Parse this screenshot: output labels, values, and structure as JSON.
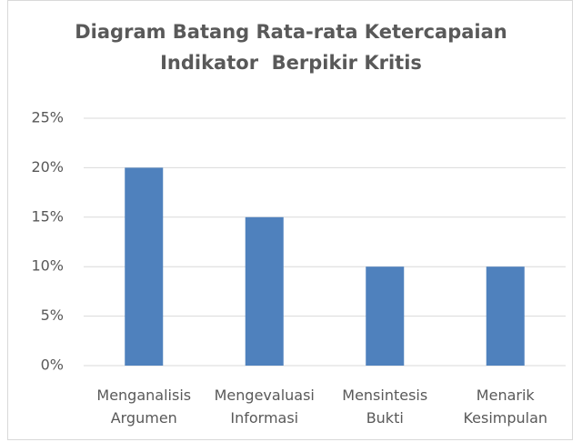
{
  "chart_data": {
    "type": "bar",
    "title": "Diagram Batang Rata-rata Ketercapaian\nIndikator  Berpikir Kritis",
    "categories": [
      "Menganalisis\nArgumen",
      "Mengevaluasi\nInformasi",
      "Mensintesis\nBukti",
      "Menarik\nKesimpulan"
    ],
    "values": [
      20,
      15,
      10,
      10
    ],
    "color": "#4f81bd",
    "ylim": [
      0,
      25
    ],
    "yticks": [
      {
        "value": 0,
        "label": "0%"
      },
      {
        "value": 5,
        "label": "5%"
      },
      {
        "value": 10,
        "label": "10%"
      },
      {
        "value": 15,
        "label": "15%"
      },
      {
        "value": 20,
        "label": "20%"
      },
      {
        "value": 25,
        "label": "25%"
      }
    ],
    "grid": true
  }
}
